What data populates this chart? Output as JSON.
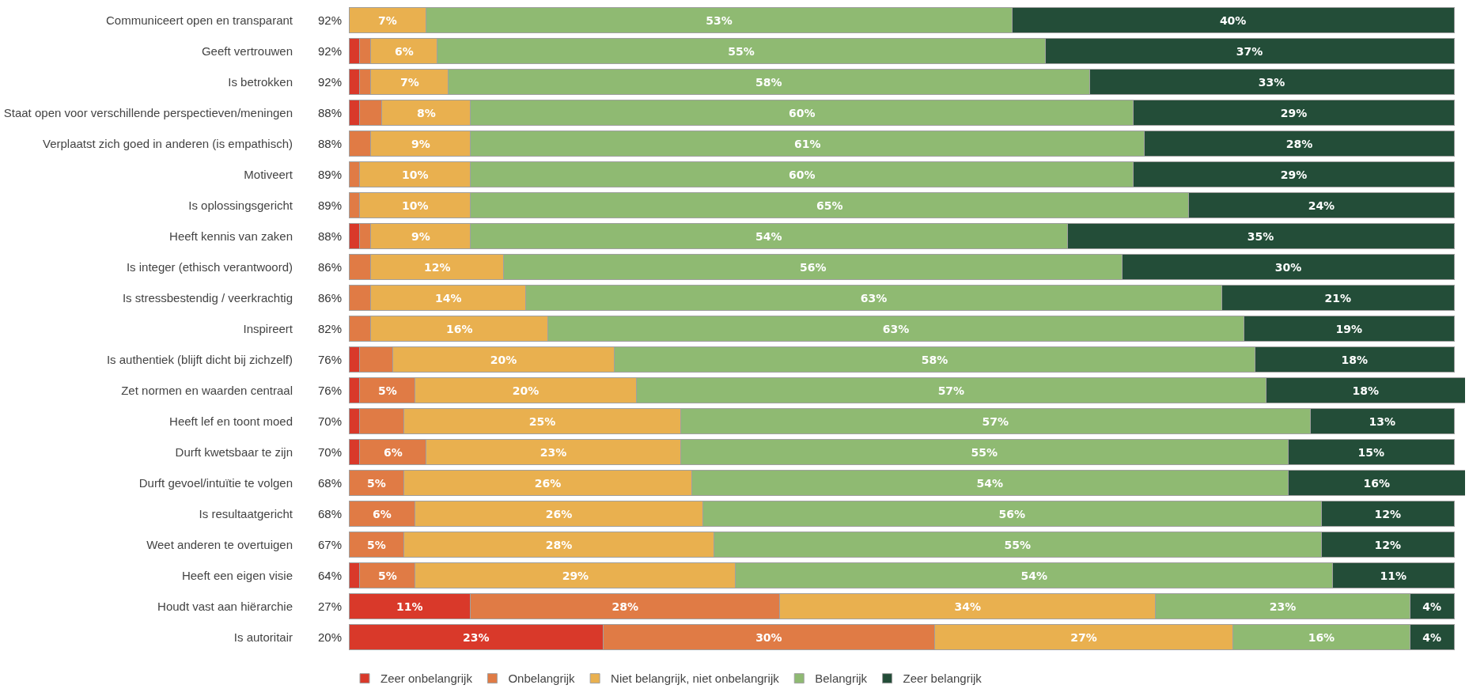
{
  "chart_data": {
    "type": "bar",
    "orientation": "horizontal",
    "stacked": true,
    "legend": "bottom",
    "grid": false,
    "tick_labels": "y",
    "xlim": [
      0,
      101
    ],
    "categories": [
      "Communiceert open en transparant",
      "Geeft vertrouwen",
      "Is betrokken",
      "Staat open voor verschillende perspectieven/meningen",
      "Verplaatst zich goed in anderen (is empathisch)",
      "Motiveert",
      "Is oplossingsgericht",
      "Heeft kennis van zaken",
      "Is integer (ethisch verantwoord)",
      "Is stressbestendig / veerkrachtig",
      "Inspireert",
      "Is authentiek (blijft dicht bij zichzelf)",
      "Zet normen en waarden centraal",
      "Heeft lef en toont moed",
      "Durft kwetsbaar te zijn",
      "Durft gevoel/intuïtie te volgen",
      "Is resultaatgericht",
      "Weet anderen te overtuigen",
      "Heeft een eigen visie",
      "Houdt vast aan hiërarchie",
      "Is autoritair"
    ],
    "series": [
      {
        "name": "Zeer onbelangrijk",
        "color": "#d9392a",
        "values": [
          0,
          1,
          1,
          1,
          0,
          0,
          0,
          1,
          0,
          0,
          0,
          1,
          1,
          1,
          1,
          0,
          0,
          0,
          1,
          11,
          23
        ],
        "value_labels": [
          null,
          null,
          null,
          null,
          null,
          null,
          null,
          null,
          null,
          null,
          null,
          null,
          null,
          null,
          null,
          null,
          null,
          null,
          null,
          "11%",
          "23%"
        ]
      },
      {
        "name": "Onbelangrijk",
        "color": "#e07b45",
        "values": [
          0,
          1,
          1,
          2,
          2,
          1,
          1,
          1,
          2,
          2,
          2,
          3,
          5,
          4,
          6,
          5,
          6,
          5,
          5,
          28,
          30
        ],
        "value_labels": [
          null,
          null,
          null,
          null,
          null,
          null,
          null,
          null,
          null,
          null,
          null,
          null,
          "5%",
          null,
          "6%",
          "5%",
          "6%",
          "5%",
          "5%",
          "28%",
          "30%"
        ]
      },
      {
        "name": "Niet belangrijk, niet onbelangrijk",
        "color": "#e9b04f",
        "values": [
          7,
          6,
          7,
          8,
          9,
          10,
          10,
          9,
          12,
          14,
          16,
          20,
          20,
          25,
          23,
          26,
          26,
          28,
          29,
          34,
          27
        ],
        "value_labels": [
          "7%",
          "6%",
          "7%",
          "8%",
          "9%",
          "10%",
          "10%",
          "9%",
          "12%",
          "14%",
          "16%",
          "20%",
          "20%",
          "25%",
          "23%",
          "26%",
          "26%",
          "28%",
          "29%",
          "34%",
          "27%"
        ]
      },
      {
        "name": "Belangrijk",
        "color": "#8fba72",
        "values": [
          53,
          55,
          58,
          60,
          61,
          60,
          65,
          54,
          56,
          63,
          63,
          58,
          57,
          57,
          55,
          54,
          56,
          55,
          54,
          23,
          16
        ],
        "value_labels": [
          "53%",
          "55%",
          "58%",
          "60%",
          "61%",
          "60%",
          "65%",
          "54%",
          "56%",
          "63%",
          "63%",
          "58%",
          "57%",
          "57%",
          "55%",
          "54%",
          "56%",
          "55%",
          "54%",
          "23%",
          "16%"
        ]
      },
      {
        "name": "Zeer belangrijk",
        "color": "#234d38",
        "values": [
          40,
          37,
          33,
          29,
          28,
          29,
          24,
          35,
          30,
          21,
          19,
          18,
          18,
          13,
          15,
          16,
          12,
          12,
          11,
          4,
          4
        ],
        "value_labels": [
          "40%",
          "37%",
          "33%",
          "29%",
          "28%",
          "29%",
          "24%",
          "35%",
          "30%",
          "21%",
          "19%",
          "18%",
          "18%",
          "13%",
          "15%",
          "16%",
          "12%",
          "12%",
          "11%",
          "4%",
          "4%"
        ]
      }
    ],
    "annotations": [
      "92%",
      "92%",
      "92%",
      "88%",
      "88%",
      "89%",
      "89%",
      "88%",
      "86%",
      "86%",
      "82%",
      "76%",
      "76%",
      "70%",
      "70%",
      "68%",
      "68%",
      "67%",
      "64%",
      "27%",
      "20%"
    ]
  }
}
